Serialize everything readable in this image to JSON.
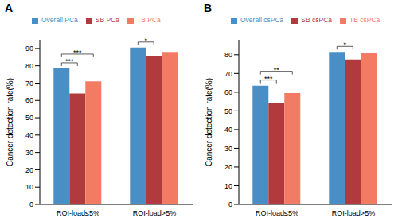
{
  "chart_data": [
    {
      "type": "bar",
      "title": "A",
      "y_label": "Cancer detection rate(%)",
      "categories": [
        "ROI-load≤5%",
        "ROI-load>5%"
      ],
      "series": [
        {
          "name": "Overall PCa",
          "color": "#4a8ec6",
          "values": [
            78.5,
            90.5
          ]
        },
        {
          "name": "SB PCa",
          "color": "#b03a3e",
          "values": [
            64,
            85.5
          ]
        },
        {
          "name": "TB PCa",
          "color": "#f47b63",
          "values": [
            71,
            88
          ]
        }
      ],
      "ylim": [
        0,
        95
      ],
      "yticks": [
        0,
        10,
        20,
        30,
        40,
        50,
        60,
        70,
        80,
        90
      ],
      "legend": "top",
      "annotations": [
        {
          "category": "ROI-load≤5%",
          "from": "Overall PCa",
          "to": "SB PCa",
          "label": "***"
        },
        {
          "category": "ROI-load≤5%",
          "from": "Overall PCa",
          "to": "TB PCa",
          "label": "***"
        },
        {
          "category": "ROI-load>5%",
          "from": "Overall PCa",
          "to": "SB PCa",
          "label": "*"
        }
      ]
    },
    {
      "type": "bar",
      "title": "B",
      "y_label": "Cancer detection rate(%)",
      "categories": [
        "ROI-load≤5%",
        "ROI-load>5%"
      ],
      "series": [
        {
          "name": "Overall csPCa",
          "color": "#4a8ec6",
          "values": [
            63.5,
            81.5
          ]
        },
        {
          "name": "SB csPCa",
          "color": "#b03a3e",
          "values": [
            54,
            77.5
          ]
        },
        {
          "name": "TB csPCa",
          "color": "#f47b63",
          "values": [
            59.5,
            81
          ]
        }
      ],
      "ylim": [
        0,
        88
      ],
      "yticks": [
        0,
        10,
        20,
        30,
        40,
        50,
        60,
        70,
        80
      ],
      "legend": "top",
      "annotations": [
        {
          "category": "ROI-load≤5%",
          "from": "Overall csPCa",
          "to": "SB csPCa",
          "label": "***"
        },
        {
          "category": "ROI-load≤5%",
          "from": "Overall csPCa",
          "to": "TB csPCa",
          "label": "**"
        },
        {
          "category": "ROI-load>5%",
          "from": "Overall csPCa",
          "to": "SB csPCa",
          "label": "*"
        }
      ]
    }
  ]
}
